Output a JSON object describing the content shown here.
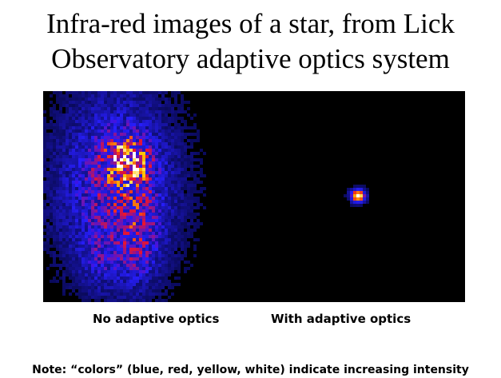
{
  "title": {
    "line1": "Infra-red images of a star, from Lick",
    "line2": "Observatory adaptive optics system"
  },
  "images": {
    "left_caption": "No adaptive optics",
    "right_caption": "With adaptive optics"
  },
  "note": "Note: “colors” (blue, red, yellow, white) indicate increasing intensity",
  "colors": {
    "background": "#ffffff",
    "image_background": "#000000",
    "low_intensity": "#1a1aff",
    "mid_intensity": "#e0201a",
    "high_intensity": "#ffd21a",
    "peak_intensity": "#ffffff"
  }
}
